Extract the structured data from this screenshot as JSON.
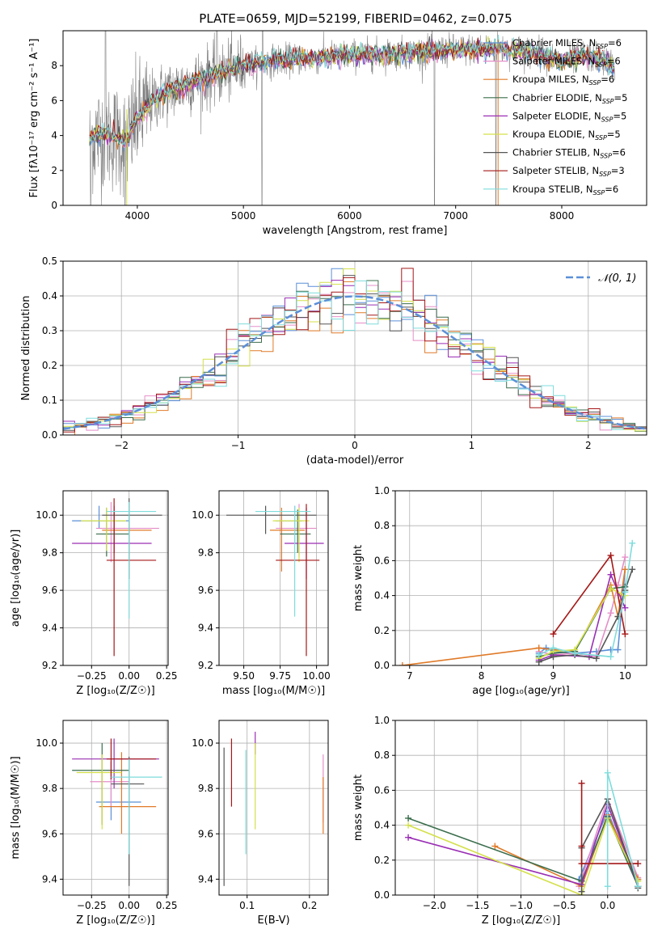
{
  "figure": {
    "title": "PLATE=0659, MJD=52199, FIBERID=0462, z=0.075"
  },
  "legend_entries": [
    {
      "label": "Chabrier MILES, N",
      "sub": "SSP",
      "tail": "=6",
      "color": "#5b8fd8"
    },
    {
      "label": "Salpeter MILES, N",
      "sub": "SSP",
      "tail": "=6",
      "color": "#e58fc8"
    },
    {
      "label": "Kroupa MILES, N",
      "sub": "SSP",
      "tail": "=6",
      "color": "#e07a28"
    },
    {
      "label": "Chabrier ELODIE, N",
      "sub": "SSP",
      "tail": "=5",
      "color": "#3a6d4c"
    },
    {
      "label": "Salpeter ELODIE, N",
      "sub": "SSP",
      "tail": "=5",
      "color": "#9a2fb5"
    },
    {
      "label": "Kroupa ELODIE, N",
      "sub": "SSP",
      "tail": "=5",
      "color": "#d4e04a"
    },
    {
      "label": "Chabrier STELIB, N",
      "sub": "SSP",
      "tail": "=6",
      "color": "#555555"
    },
    {
      "label": "Salpeter STELIB, N",
      "sub": "SSP",
      "tail": "=3",
      "color": "#a51818"
    },
    {
      "label": "Kroupa STELIB, N",
      "sub": "SSP",
      "tail": "=6",
      "color": "#7fdcdc"
    }
  ],
  "chart_data": [
    {
      "id": "spectrum",
      "type": "line",
      "xlabel": "wavelength [Angstrom, rest frame]",
      "ylabel": "Flux [fλ10⁻¹⁷ erg cm⁻² s⁻¹ A⁻¹]",
      "xlim": [
        3300,
        8800
      ],
      "ylim": [
        0,
        10
      ],
      "xticks": [
        4000,
        5000,
        6000,
        7000,
        8000
      ],
      "yticks": [
        0,
        2,
        4,
        6,
        8
      ],
      "data_color": "#808080",
      "anchors": {
        "wavelength": [
          3550,
          3700,
          3900,
          4000,
          4200,
          4500,
          4800,
          5000,
          5300,
          5600,
          6000,
          6500,
          7000,
          7400,
          7800,
          8000,
          8200,
          8400,
          8500
        ],
        "flux": [
          3.9,
          4.1,
          3.7,
          5.0,
          6.3,
          7.0,
          7.6,
          8.0,
          8.3,
          8.4,
          8.6,
          8.7,
          8.9,
          9.0,
          8.7,
          8.2,
          8.6,
          8.3,
          7.9
        ]
      }
    },
    {
      "id": "residuals",
      "type": "histogram",
      "xlabel": "(data-model)/error",
      "ylabel": "Normed distribution",
      "xlim": [
        -2.5,
        2.5
      ],
      "ylim": [
        0,
        0.5
      ],
      "xticks": [
        -2,
        -1,
        0,
        1,
        2
      ],
      "yticks": [
        0.0,
        0.1,
        0.2,
        0.3,
        0.4,
        0.5
      ],
      "legend": "𝒩(0, 1)",
      "reference_curve": "normal(0,1)",
      "bin_width": 0.1
    },
    {
      "id": "age_vs_Z",
      "type": "errorbar",
      "xlabel": "Z [log₁₀(Z/Z☉)]",
      "ylabel": "age  [log₁₀(age/yr)]",
      "xlim": [
        -0.44,
        0.26
      ],
      "ylim": [
        9.2,
        10.13
      ],
      "xticks": [
        -0.25,
        0.0,
        0.25
      ],
      "yticks": [
        9.2,
        9.4,
        9.6,
        9.8,
        10.0
      ],
      "points": [
        {
          "x": -0.2,
          "y": 9.97,
          "xlo": -0.38,
          "xhi": 0.0,
          "ylo": 9.93,
          "yhi": 10.05,
          "series": 0
        },
        {
          "x": -0.12,
          "y": 9.93,
          "xlo": -0.22,
          "xhi": 0.2,
          "ylo": 9.75,
          "yhi": 10.07,
          "series": 1
        },
        {
          "x": -0.1,
          "y": 9.92,
          "xlo": -0.18,
          "xhi": 0.15,
          "ylo": 9.8,
          "yhi": 10.02,
          "series": 2
        },
        {
          "x": -0.15,
          "y": 9.9,
          "xlo": -0.22,
          "xhi": 0.0,
          "ylo": 9.78,
          "yhi": 10.04,
          "series": 3
        },
        {
          "x": -0.1,
          "y": 9.85,
          "xlo": -0.38,
          "xhi": 0.15,
          "ylo": 9.8,
          "yhi": 10.05,
          "series": 4
        },
        {
          "x": -0.15,
          "y": 9.97,
          "xlo": -0.32,
          "xhi": -0.02,
          "ylo": 9.81,
          "yhi": 10.04,
          "series": 5
        },
        {
          "x": 0.0,
          "y": 10.0,
          "xlo": -0.18,
          "xhi": 0.22,
          "ylo": 9.66,
          "yhi": 10.09,
          "series": 6
        },
        {
          "x": -0.1,
          "y": 9.76,
          "xlo": -0.15,
          "xhi": 0.18,
          "ylo": 9.25,
          "yhi": 10.09,
          "series": 7
        },
        {
          "x": 0.0,
          "y": 10.02,
          "xlo": -0.15,
          "xhi": 0.18,
          "ylo": 9.45,
          "yhi": 10.07,
          "series": 8
        }
      ]
    },
    {
      "id": "age_vs_mass",
      "type": "errorbar",
      "xlabel": "mass [log₁₀(M/M☉)]",
      "ylabel": "",
      "xlim": [
        9.33,
        10.08
      ],
      "ylim": [
        9.2,
        10.13
      ],
      "xticks": [
        9.5,
        9.75,
        10.0
      ],
      "yticks": [
        9.2,
        9.4,
        9.6,
        9.8,
        10.0
      ],
      "points": [
        {
          "x": 9.85,
          "y": 9.97,
          "xlo": 9.72,
          "xhi": 9.9,
          "ylo": 9.85,
          "yhi": 10.05,
          "series": 0
        },
        {
          "x": 9.88,
          "y": 9.93,
          "xlo": 9.72,
          "xhi": 10.0,
          "ylo": 9.78,
          "yhi": 10.06,
          "series": 1
        },
        {
          "x": 9.76,
          "y": 9.92,
          "xlo": 9.68,
          "xhi": 9.92,
          "ylo": 9.7,
          "yhi": 10.04,
          "series": 2
        },
        {
          "x": 9.87,
          "y": 9.9,
          "xlo": 9.75,
          "xhi": 9.96,
          "ylo": 9.8,
          "yhi": 10.03,
          "series": 3
        },
        {
          "x": 9.93,
          "y": 9.85,
          "xlo": 9.78,
          "xhi": 10.05,
          "ylo": 9.66,
          "yhi": 10.04,
          "series": 4
        },
        {
          "x": 9.88,
          "y": 9.97,
          "xlo": 9.7,
          "xhi": 9.95,
          "ylo": 9.75,
          "yhi": 10.04,
          "series": 5
        },
        {
          "x": 9.65,
          "y": 10.0,
          "xlo": 9.38,
          "xhi": 10.0,
          "ylo": 9.9,
          "yhi": 10.05,
          "series": 6
        },
        {
          "x": 9.93,
          "y": 9.76,
          "xlo": 9.72,
          "xhi": 10.02,
          "ylo": 9.25,
          "yhi": 10.06,
          "series": 7
        },
        {
          "x": 9.85,
          "y": 10.02,
          "xlo": 9.58,
          "xhi": 9.96,
          "ylo": 9.46,
          "yhi": 10.05,
          "series": 8
        }
      ]
    },
    {
      "id": "mass_weight_vs_age",
      "type": "line",
      "xlabel": "age  [log₁₀(age/yr)]",
      "ylabel": "mass weight",
      "xlim": [
        6.8,
        10.3
      ],
      "ylim": [
        0.0,
        1.0
      ],
      "xticks": [
        7,
        8,
        9,
        10
      ],
      "yticks": [
        0.0,
        0.2,
        0.4,
        0.6,
        0.8,
        1.0
      ],
      "series": [
        {
          "name": "Chabrier MILES",
          "x": [
            8.8,
            8.9,
            9.0,
            9.3,
            9.6,
            9.8,
            9.9,
            10.0
          ],
          "y": [
            0.07,
            0.1,
            0.08,
            0.07,
            0.08,
            0.09,
            0.09,
            0.55
          ]
        },
        {
          "name": "Salpeter MILES",
          "x": [
            8.8,
            9.0,
            9.3,
            9.6,
            9.8,
            9.9,
            10.0
          ],
          "y": [
            0.08,
            0.06,
            0.07,
            0.05,
            0.3,
            0.46,
            0.62
          ]
        },
        {
          "name": "Kroupa MILES",
          "x": [
            6.9,
            8.8,
            9.0,
            9.3,
            9.8,
            9.9,
            10.0
          ],
          "y": [
            0.0,
            0.1,
            0.09,
            0.08,
            0.46,
            0.28,
            0.55
          ]
        },
        {
          "name": "Chabrier ELODIE",
          "x": [
            8.8,
            9.0,
            9.3,
            9.8,
            10.0
          ],
          "y": [
            0.05,
            0.07,
            0.08,
            0.44,
            0.45
          ]
        },
        {
          "name": "Salpeter ELODIE",
          "x": [
            8.8,
            9.0,
            9.5,
            9.8,
            10.0
          ],
          "y": [
            0.03,
            0.06,
            0.05,
            0.52,
            0.33
          ]
        },
        {
          "name": "Kroupa ELODIE",
          "x": [
            8.8,
            9.0,
            9.3,
            9.8,
            10.0
          ],
          "y": [
            0.04,
            0.08,
            0.09,
            0.44,
            0.4
          ]
        },
        {
          "name": "Chabrier STELIB",
          "x": [
            8.8,
            9.0,
            9.3,
            9.6,
            9.9,
            10.0,
            10.1
          ],
          "y": [
            0.02,
            0.05,
            0.06,
            0.04,
            0.28,
            0.43,
            0.55
          ]
        },
        {
          "name": "Salpeter STELIB",
          "x": [
            9.0,
            9.8,
            10.0
          ],
          "y": [
            0.18,
            0.63,
            0.18
          ]
        },
        {
          "name": "Kroupa STELIB",
          "x": [
            8.8,
            9.0,
            9.3,
            9.8,
            10.0,
            10.1
          ],
          "y": [
            0.06,
            0.1,
            0.07,
            0.05,
            0.42,
            0.7
          ]
        }
      ]
    },
    {
      "id": "mass_vs_Z",
      "type": "errorbar",
      "xlabel": "Z [log₁₀(Z/Z☉)]",
      "ylabel": "mass [log₁₀(M/M☉)]",
      "xlim": [
        -0.44,
        0.26
      ],
      "ylim": [
        9.33,
        10.1
      ],
      "xticks": [
        -0.25,
        0.0,
        0.25
      ],
      "yticks": [
        9.4,
        9.6,
        9.8,
        10.0
      ],
      "points": [
        {
          "x": -0.12,
          "y": 9.74,
          "xlo": -0.22,
          "xhi": 0.08,
          "ylo": 9.66,
          "yhi": 9.92,
          "series": 0
        },
        {
          "x": -0.12,
          "y": 9.83,
          "xlo": -0.26,
          "xhi": 0.0,
          "ylo": 9.72,
          "yhi": 9.92,
          "series": 1
        },
        {
          "x": -0.05,
          "y": 9.72,
          "xlo": -0.2,
          "xhi": 0.18,
          "ylo": 9.6,
          "yhi": 9.96,
          "series": 2
        },
        {
          "x": -0.18,
          "y": 9.88,
          "xlo": -0.38,
          "xhi": 0.0,
          "ylo": 9.64,
          "yhi": 10.0,
          "series": 3
        },
        {
          "x": -0.1,
          "y": 9.93,
          "xlo": -0.38,
          "xhi": 0.2,
          "ylo": 9.8,
          "yhi": 10.02,
          "series": 4
        },
        {
          "x": -0.18,
          "y": 9.87,
          "xlo": -0.35,
          "xhi": -0.05,
          "ylo": 9.62,
          "yhi": 9.95,
          "series": 5
        },
        {
          "x": 0.0,
          "y": 9.82,
          "xlo": -0.12,
          "xhi": 0.1,
          "ylo": 9.37,
          "yhi": 9.94,
          "series": 6
        },
        {
          "x": -0.12,
          "y": 9.93,
          "xlo": -0.15,
          "xhi": 0.18,
          "ylo": 9.84,
          "yhi": 10.02,
          "series": 7
        },
        {
          "x": 0.0,
          "y": 9.85,
          "xlo": -0.12,
          "xhi": 0.22,
          "ylo": 9.51,
          "yhi": 9.93,
          "series": 8
        }
      ]
    },
    {
      "id": "mass_vs_ebv",
      "type": "errorbar",
      "xlabel": "E(B-V)",
      "ylabel": "",
      "xlim": [
        0.055,
        0.23
      ],
      "ylim": [
        9.33,
        10.1
      ],
      "xticks": [
        0.1,
        0.2
      ],
      "yticks": [
        9.4,
        9.6,
        9.8,
        10.0
      ],
      "points": [
        {
          "x": 0.222,
          "y": 9.75,
          "ylo": 9.65,
          "yhi": 9.95,
          "series": 1
        },
        {
          "x": 0.222,
          "y": 9.7,
          "ylo": 9.6,
          "yhi": 9.85,
          "series": 2
        },
        {
          "x": 0.113,
          "y": 10.0,
          "ylo": 9.95,
          "yhi": 10.05,
          "series": 4
        },
        {
          "x": 0.113,
          "y": 9.8,
          "ylo": 9.62,
          "yhi": 10.0,
          "series": 5
        },
        {
          "x": 0.063,
          "y": 9.7,
          "ylo": 9.37,
          "yhi": 9.98,
          "series": 6
        },
        {
          "x": 0.075,
          "y": 9.85,
          "ylo": 9.72,
          "yhi": 10.02,
          "series": 7
        },
        {
          "x": 0.098,
          "y": 9.75,
          "ylo": 9.51,
          "yhi": 9.97,
          "series": 8
        }
      ]
    },
    {
      "id": "mass_weight_vs_Z",
      "type": "line",
      "xlabel": "Z [log₁₀(Z/Z☉)]",
      "ylabel": "mass weight",
      "xlim": [
        -2.45,
        0.45
      ],
      "ylim": [
        0.0,
        1.0
      ],
      "xticks": [
        -2.0,
        -1.5,
        -1.0,
        -0.5,
        0.0
      ],
      "yticks": [
        0.0,
        0.2,
        0.4,
        0.6,
        0.8,
        1.0
      ],
      "series": [
        {
          "name": "Chabrier MILES",
          "x": [
            -0.33,
            0.0,
            0.35,
            0.35
          ],
          "y": [
            0.09,
            0.48,
            0.05,
            0.09
          ]
        },
        {
          "name": "Salpeter MILES",
          "x": [
            -0.33,
            0.0,
            0.35
          ],
          "y": [
            0.05,
            0.55,
            0.1
          ]
        },
        {
          "name": "Kroupa MILES",
          "x": [
            -1.3,
            -0.3,
            0.0,
            0.35
          ],
          "y": [
            0.28,
            0.05,
            0.46,
            0.09
          ]
        },
        {
          "name": "Chabrier ELODIE",
          "x": [
            -2.3,
            -0.3,
            0.0,
            0.35
          ],
          "y": [
            0.44,
            0.08,
            0.45,
            0.05
          ]
        },
        {
          "name": "Salpeter ELODIE",
          "x": [
            -2.3,
            -0.3,
            0.0,
            0.35
          ],
          "y": [
            0.33,
            0.06,
            0.52,
            0.05
          ]
        },
        {
          "name": "Kroupa ELODIE",
          "x": [
            -2.3,
            -0.3,
            0.0,
            0.35
          ],
          "y": [
            0.4,
            0.0,
            0.44,
            0.08
          ]
        },
        {
          "name": "Chabrier STELIB",
          "x": [
            -0.3,
            -0.3,
            0.0,
            0.35,
            0.35
          ],
          "y": [
            0.02,
            0.27,
            0.55,
            0.05,
            0.04
          ]
        },
        {
          "name": "Salpeter STELIB",
          "x": [
            -0.3,
            -0.3,
            -0.3,
            0.35
          ],
          "y": [
            0.64,
            0.28,
            0.18,
            0.18
          ]
        },
        {
          "name": "Kroupa STELIB",
          "x": [
            0.0,
            0.0,
            0.35
          ],
          "y": [
            0.05,
            0.7,
            0.05
          ]
        }
      ]
    }
  ]
}
